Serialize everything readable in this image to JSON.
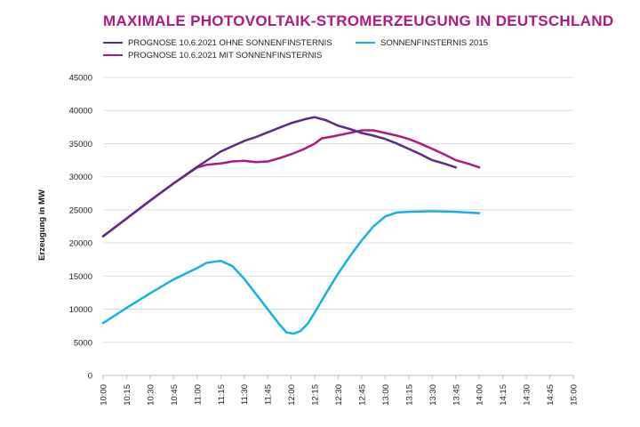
{
  "chart_data": {
    "type": "line",
    "title": "MAXIMALE PHOTOVOLTAIK-STROMERZEUGUNG IN DEUTSCHLAND",
    "ylabel": "Erzeugung in MW",
    "xlabel": "",
    "ylim": [
      0,
      45000
    ],
    "yticks": [
      "0",
      "5000",
      "10000",
      "15000",
      "20000",
      "25000",
      "30000",
      "35000",
      "40000",
      "45000"
    ],
    "categories": [
      "10:00",
      "10:15",
      "10:30",
      "10:45",
      "11:00",
      "11:15",
      "11:30",
      "11:45",
      "12:00",
      "12:15",
      "12:30",
      "12:45",
      "13:00",
      "13:15",
      "13:30",
      "13:45",
      "14:00",
      "14:15",
      "14:30",
      "14:45",
      "15:00"
    ],
    "legend_position": "top-left",
    "grid": true,
    "series": [
      {
        "name": "PROGNOSE 10.6.2021 OHNE SONNENFINSTERNIS",
        "color": "#5b2a86",
        "points": [
          [
            0,
            21000
          ],
          [
            1,
            23700
          ],
          [
            2,
            26400
          ],
          [
            3,
            29000
          ],
          [
            4,
            31500
          ],
          [
            5,
            33800
          ],
          [
            6,
            35400
          ],
          [
            6.5,
            36000
          ],
          [
            7,
            36700
          ],
          [
            7.5,
            37400
          ],
          [
            8,
            38100
          ],
          [
            8.6,
            38700
          ],
          [
            9,
            39000
          ],
          [
            9.5,
            38500
          ],
          [
            10,
            37700
          ],
          [
            10.5,
            37200
          ],
          [
            11,
            36600
          ],
          [
            11.5,
            36200
          ],
          [
            12,
            35700
          ],
          [
            12.5,
            35000
          ],
          [
            13,
            34200
          ],
          [
            13.5,
            33400
          ],
          [
            14,
            32500
          ],
          [
            14.5,
            32000
          ],
          [
            15,
            31400
          ],
          [
            16,
            null
          ]
        ]
      },
      {
        "name": "PROGNOSE 10.6.2021 MIT SONNENFINSTERNIS",
        "color": "#b0197f",
        "points": [
          [
            0,
            21000
          ],
          [
            1,
            23700
          ],
          [
            2,
            26400
          ],
          [
            3,
            29000
          ],
          [
            4,
            31400
          ],
          [
            4.4,
            31800
          ],
          [
            5,
            32000
          ],
          [
            5.5,
            32300
          ],
          [
            6,
            32400
          ],
          [
            6.5,
            32200
          ],
          [
            7,
            32300
          ],
          [
            7.5,
            32800
          ],
          [
            8,
            33400
          ],
          [
            8.5,
            34100
          ],
          [
            9,
            35000
          ],
          [
            9.3,
            35800
          ],
          [
            9.8,
            36100
          ],
          [
            10.2,
            36400
          ],
          [
            10.6,
            36700
          ],
          [
            11,
            37000
          ],
          [
            11.5,
            37000
          ],
          [
            12,
            36600
          ],
          [
            12.5,
            36200
          ],
          [
            13,
            35700
          ],
          [
            13.5,
            35000
          ],
          [
            14,
            34200
          ],
          [
            14.5,
            33400
          ],
          [
            15,
            32500
          ],
          [
            15.5,
            32000
          ],
          [
            16,
            31400
          ]
        ]
      },
      {
        "name": "SONNENFINSTERNIS 2015",
        "color": "#16b1e6",
        "points": [
          [
            0,
            7900
          ],
          [
            1,
            10200
          ],
          [
            2,
            12400
          ],
          [
            3,
            14500
          ],
          [
            4,
            16200
          ],
          [
            4.4,
            17000
          ],
          [
            5,
            17300
          ],
          [
            5.5,
            16500
          ],
          [
            6,
            14600
          ],
          [
            6.5,
            12300
          ],
          [
            7,
            10000
          ],
          [
            7.5,
            7700
          ],
          [
            7.8,
            6500
          ],
          [
            8.1,
            6300
          ],
          [
            8.4,
            6700
          ],
          [
            8.7,
            7800
          ],
          [
            9,
            9500
          ],
          [
            9.5,
            12500
          ],
          [
            10,
            15400
          ],
          [
            10.5,
            18000
          ],
          [
            11,
            20400
          ],
          [
            11.5,
            22500
          ],
          [
            12,
            24000
          ],
          [
            12.5,
            24600
          ],
          [
            13,
            24700
          ],
          [
            13.5,
            24750
          ],
          [
            14,
            24800
          ],
          [
            14.5,
            24750
          ],
          [
            15,
            24700
          ],
          [
            15.5,
            24600
          ],
          [
            16,
            24500
          ]
        ]
      }
    ]
  }
}
